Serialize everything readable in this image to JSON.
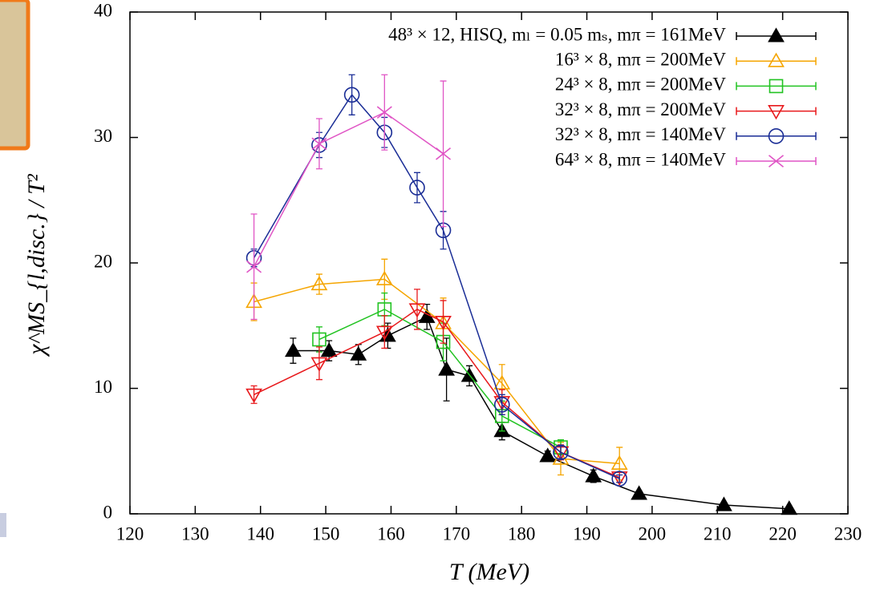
{
  "chart_data": {
    "type": "errorbar-line",
    "x_label": "T (MeV)",
    "y_label": "χ^MS_{l,disc.} / T²",
    "xlim": [
      120,
      230
    ],
    "xticks": [
      120,
      130,
      140,
      150,
      160,
      170,
      180,
      190,
      200,
      210,
      220,
      230
    ],
    "ylim": [
      0,
      40
    ],
    "yticks": [
      0,
      10,
      20,
      30,
      40
    ],
    "legend": "top-right",
    "series": [
      {
        "name": "48³ × 12, HISQ, mₗ = 0.05 mₛ, mπ = 161MeV",
        "color": "#000000",
        "marker": "triangle-filled",
        "x": [
          145,
          150.5,
          155,
          159.5,
          165.5,
          168.5,
          172,
          177,
          184,
          191,
          198,
          211,
          221
        ],
        "values": [
          13.0,
          13.0,
          12.7,
          14.2,
          15.7,
          11.5,
          11.0,
          6.6,
          4.6,
          3.0,
          1.6,
          0.7,
          0.4
        ],
        "errors": [
          1.0,
          0.8,
          0.8,
          1.0,
          1.0,
          2.5,
          0.8,
          0.7,
          0.4,
          0.5,
          0.2,
          0.1,
          0.1
        ]
      },
      {
        "name": "16³ × 8, mπ = 200MeV",
        "color": "#f5a500",
        "marker": "triangle",
        "x": [
          139,
          149,
          159,
          168,
          177,
          186,
          195
        ],
        "values": [
          16.9,
          18.3,
          18.7,
          15.2,
          10.4,
          4.4,
          4.0
        ],
        "errors": [
          1.5,
          0.8,
          1.6,
          2.0,
          1.5,
          1.3,
          1.3
        ]
      },
      {
        "name": "24³ × 8, mπ = 200MeV",
        "color": "#22c322",
        "marker": "square",
        "x": [
          149,
          159,
          168,
          177,
          186
        ],
        "values": [
          13.9,
          16.3,
          13.7,
          7.8,
          5.3
        ],
        "errors": [
          1.0,
          1.3,
          1.5,
          1.2,
          0.6
        ]
      },
      {
        "name": "32³ × 8, mπ = 200MeV",
        "color": "#e8191c",
        "marker": "triangle-down",
        "x": [
          139,
          149,
          159,
          164,
          168,
          177,
          186,
          195
        ],
        "values": [
          9.5,
          12.0,
          14.5,
          16.3,
          15.3,
          8.9,
          4.9,
          2.9
        ],
        "errors": [
          0.7,
          1.3,
          1.3,
          1.6,
          1.7,
          1.0,
          0.6,
          0.4
        ]
      },
      {
        "name": "32³ × 8, mπ = 140MeV",
        "color": "#1a2d96",
        "marker": "circle",
        "x": [
          139,
          149,
          154,
          159,
          164,
          168,
          177,
          186,
          195
        ],
        "values": [
          20.4,
          29.4,
          33.4,
          30.4,
          26.0,
          22.6,
          8.7,
          4.9,
          2.8
        ],
        "errors": [
          0.7,
          1.0,
          1.6,
          1.2,
          1.2,
          1.5,
          0.8,
          0.5,
          0.3
        ]
      },
      {
        "name": "64³ × 8, mπ = 140MeV",
        "color": "#e055c5",
        "marker": "cross",
        "x": [
          139,
          149,
          159,
          168
        ],
        "values": [
          19.7,
          29.5,
          32.0,
          28.7
        ],
        "errors": [
          4.2,
          2.0,
          3.0,
          5.8
        ]
      }
    ]
  }
}
